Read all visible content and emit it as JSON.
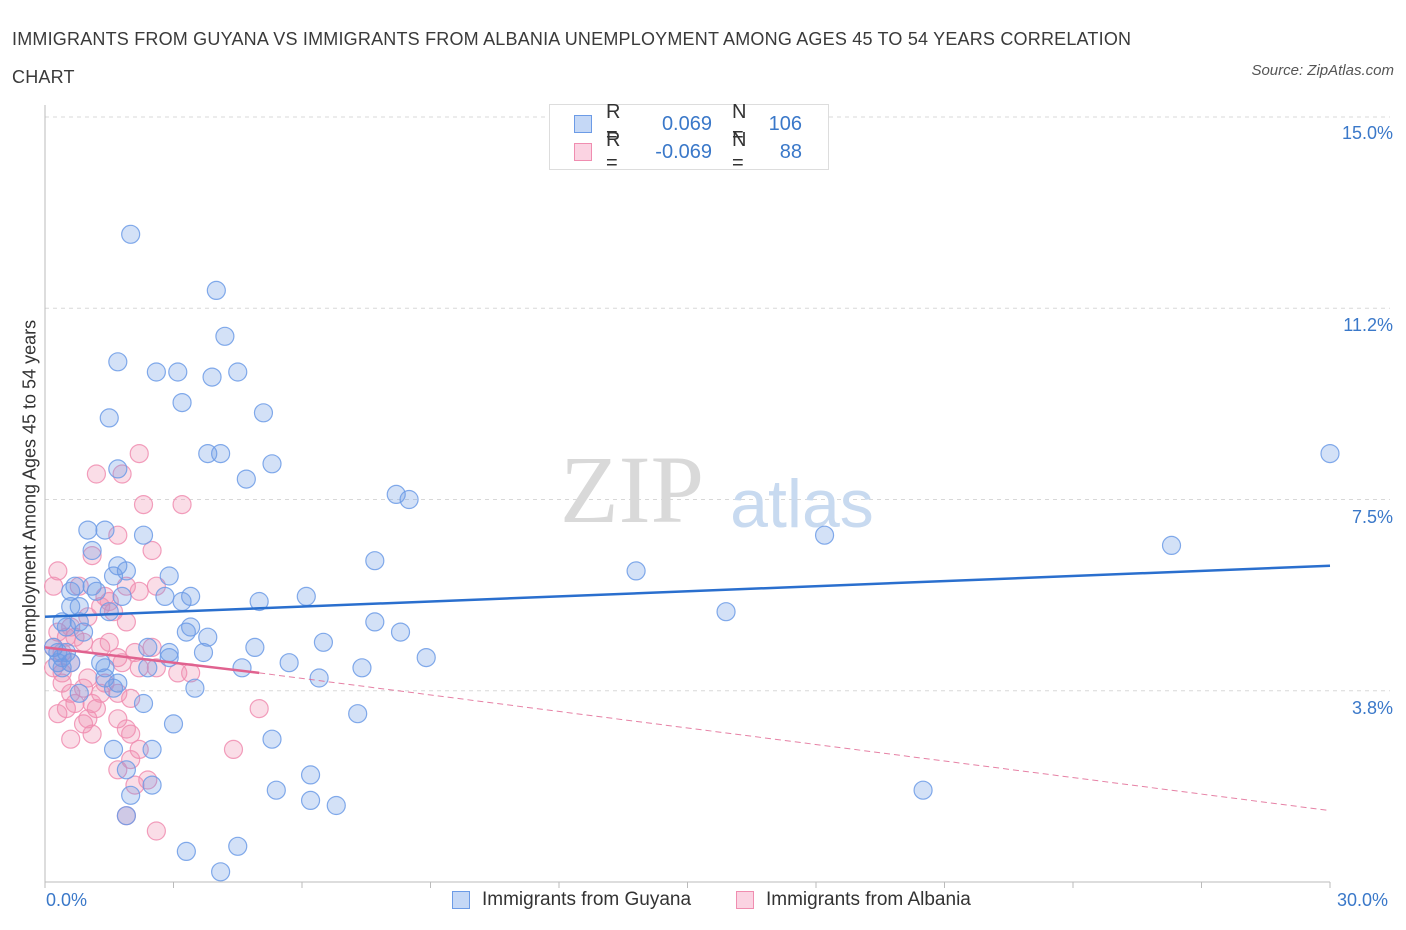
{
  "title": "IMMIGRANTS FROM GUYANA VS IMMIGRANTS FROM ALBANIA UNEMPLOYMENT AMONG AGES 45 TO 54 YEARS CORRELATION CHART",
  "source": "Source: ZipAtlas.com",
  "watermark": {
    "zip": "ZIP",
    "atlas": "atlas"
  },
  "colors": {
    "guyana": "#6c9be6",
    "albania": "#f08db0",
    "guyana_line": "#2a6fce",
    "albania_line": "#e0628f",
    "axis_text": "#3a78c9",
    "grid": "#d8d8d8"
  },
  "legend": {
    "series": [
      {
        "r_label": "R =",
        "r_value": "0.069",
        "n_label": "N =",
        "n_value": "106"
      },
      {
        "r_label": "R =",
        "r_value": "-0.069",
        "n_label": "N =",
        "n_value": "88"
      }
    ]
  },
  "bottom_legend": [
    "Immigrants from Guyana",
    "Immigrants from Albania"
  ],
  "chart_data": {
    "type": "scatter",
    "xlabel": "",
    "ylabel": "Unemployment Among Ages 45 to 54 years",
    "x_ticks": [
      "0.0%",
      "30.0%"
    ],
    "y_ticks": [
      "15.0%",
      "11.2%",
      "7.5%",
      "3.8%"
    ],
    "xlim": [
      0,
      30
    ],
    "ylim": [
      0,
      15
    ],
    "grid": true,
    "legend_position": "top-center",
    "series": [
      {
        "name": "Immigrants from Guyana",
        "trend": {
          "x": [
            0,
            30
          ],
          "y": [
            5.2,
            6.2
          ]
        },
        "points": [
          [
            2.0,
            12.7
          ],
          [
            4.0,
            11.6
          ],
          [
            4.2,
            10.7
          ],
          [
            1.7,
            10.2
          ],
          [
            2.6,
            10.0
          ],
          [
            3.1,
            10.0
          ],
          [
            3.9,
            9.9
          ],
          [
            4.5,
            10.0
          ],
          [
            3.2,
            9.4
          ],
          [
            1.5,
            9.1
          ],
          [
            5.1,
            9.2
          ],
          [
            3.8,
            8.4
          ],
          [
            4.1,
            8.4
          ],
          [
            1.7,
            8.1
          ],
          [
            5.3,
            8.2
          ],
          [
            4.7,
            7.9
          ],
          [
            8.2,
            7.6
          ],
          [
            8.5,
            7.5
          ],
          [
            30.0,
            8.4
          ],
          [
            18.2,
            6.8
          ],
          [
            26.3,
            6.6
          ],
          [
            1.0,
            6.9
          ],
          [
            1.4,
            6.9
          ],
          [
            2.3,
            6.8
          ],
          [
            1.1,
            6.5
          ],
          [
            1.7,
            6.2
          ],
          [
            1.9,
            6.1
          ],
          [
            1.6,
            6.0
          ],
          [
            2.9,
            6.0
          ],
          [
            7.7,
            6.3
          ],
          [
            13.8,
            6.1
          ],
          [
            0.7,
            5.8
          ],
          [
            1.1,
            5.8
          ],
          [
            1.2,
            5.7
          ],
          [
            0.6,
            5.7
          ],
          [
            1.8,
            5.6
          ],
          [
            2.8,
            5.6
          ],
          [
            3.4,
            5.6
          ],
          [
            3.2,
            5.5
          ],
          [
            0.6,
            5.4
          ],
          [
            0.8,
            5.4
          ],
          [
            1.5,
            5.3
          ],
          [
            5.0,
            5.5
          ],
          [
            6.1,
            5.6
          ],
          [
            15.9,
            5.3
          ],
          [
            0.4,
            5.1
          ],
          [
            0.5,
            5.0
          ],
          [
            0.8,
            5.1
          ],
          [
            0.9,
            4.9
          ],
          [
            3.4,
            5.0
          ],
          [
            3.3,
            4.9
          ],
          [
            7.7,
            5.1
          ],
          [
            8.3,
            4.9
          ],
          [
            3.8,
            4.8
          ],
          [
            6.5,
            4.7
          ],
          [
            0.2,
            4.6
          ],
          [
            0.3,
            4.5
          ],
          [
            0.4,
            4.4
          ],
          [
            0.5,
            4.5
          ],
          [
            0.3,
            4.3
          ],
          [
            0.4,
            4.2
          ],
          [
            0.6,
            4.3
          ],
          [
            2.4,
            4.6
          ],
          [
            2.9,
            4.5
          ],
          [
            2.9,
            4.4
          ],
          [
            3.7,
            4.5
          ],
          [
            4.9,
            4.6
          ],
          [
            5.7,
            4.3
          ],
          [
            7.4,
            4.2
          ],
          [
            8.9,
            4.4
          ],
          [
            1.3,
            4.3
          ],
          [
            1.4,
            4.2
          ],
          [
            1.4,
            4.0
          ],
          [
            2.4,
            4.2
          ],
          [
            4.6,
            4.2
          ],
          [
            6.4,
            4.0
          ],
          [
            1.7,
            3.9
          ],
          [
            1.6,
            3.8
          ],
          [
            3.5,
            3.8
          ],
          [
            0.8,
            3.7
          ],
          [
            2.3,
            3.5
          ],
          [
            7.3,
            3.3
          ],
          [
            3.0,
            3.1
          ],
          [
            5.3,
            2.8
          ],
          [
            1.6,
            2.6
          ],
          [
            2.5,
            2.6
          ],
          [
            1.9,
            2.2
          ],
          [
            6.2,
            2.1
          ],
          [
            2.5,
            1.9
          ],
          [
            5.4,
            1.8
          ],
          [
            2.0,
            1.7
          ],
          [
            6.2,
            1.6
          ],
          [
            6.8,
            1.5
          ],
          [
            20.5,
            1.8
          ],
          [
            1.9,
            1.3
          ],
          [
            3.3,
            0.6
          ],
          [
            4.5,
            0.7
          ],
          [
            4.1,
            0.2
          ]
        ]
      },
      {
        "name": "Immigrants from Albania",
        "trend": {
          "x": [
            0,
            5
          ],
          "y": [
            4.6,
            4.1
          ]
        },
        "trend_extended": {
          "x": [
            5,
            30
          ],
          "y": [
            4.1,
            1.4
          ]
        },
        "points": [
          [
            2.2,
            8.4
          ],
          [
            1.2,
            8.0
          ],
          [
            1.8,
            8.0
          ],
          [
            2.3,
            7.4
          ],
          [
            3.2,
            7.4
          ],
          [
            1.7,
            6.8
          ],
          [
            2.5,
            6.5
          ],
          [
            1.1,
            6.4
          ],
          [
            0.3,
            6.1
          ],
          [
            0.2,
            5.8
          ],
          [
            0.8,
            5.8
          ],
          [
            1.9,
            5.8
          ],
          [
            2.6,
            5.8
          ],
          [
            2.2,
            5.7
          ],
          [
            1.4,
            5.6
          ],
          [
            1.5,
            5.5
          ],
          [
            1.3,
            5.4
          ],
          [
            1.6,
            5.3
          ],
          [
            1.0,
            5.2
          ],
          [
            1.9,
            5.1
          ],
          [
            0.6,
            5.0
          ],
          [
            0.3,
            4.9
          ],
          [
            0.5,
            4.8
          ],
          [
            0.7,
            4.8
          ],
          [
            0.9,
            4.7
          ],
          [
            1.3,
            4.6
          ],
          [
            1.5,
            4.7
          ],
          [
            0.2,
            4.6
          ],
          [
            0.4,
            4.5
          ],
          [
            2.5,
            4.6
          ],
          [
            2.1,
            4.5
          ],
          [
            1.7,
            4.4
          ],
          [
            1.8,
            4.3
          ],
          [
            0.6,
            4.3
          ],
          [
            0.2,
            4.2
          ],
          [
            0.4,
            4.1
          ],
          [
            2.2,
            4.2
          ],
          [
            2.6,
            4.2
          ],
          [
            3.1,
            4.1
          ],
          [
            3.4,
            4.1
          ],
          [
            1.0,
            4.0
          ],
          [
            1.4,
            3.9
          ],
          [
            0.4,
            3.9
          ],
          [
            0.9,
            3.8
          ],
          [
            0.6,
            3.7
          ],
          [
            1.3,
            3.7
          ],
          [
            1.7,
            3.7
          ],
          [
            2.0,
            3.6
          ],
          [
            0.7,
            3.5
          ],
          [
            1.1,
            3.5
          ],
          [
            0.5,
            3.4
          ],
          [
            1.2,
            3.4
          ],
          [
            0.3,
            3.3
          ],
          [
            1.7,
            3.2
          ],
          [
            1.0,
            3.2
          ],
          [
            0.9,
            3.1
          ],
          [
            5.0,
            3.4
          ],
          [
            1.9,
            3.0
          ],
          [
            2.0,
            2.9
          ],
          [
            1.1,
            2.9
          ],
          [
            0.6,
            2.8
          ],
          [
            2.2,
            2.6
          ],
          [
            4.4,
            2.6
          ],
          [
            2.0,
            2.4
          ],
          [
            1.7,
            2.2
          ],
          [
            2.4,
            2.0
          ],
          [
            2.1,
            1.9
          ],
          [
            1.9,
            1.3
          ],
          [
            2.6,
            1.0
          ]
        ]
      }
    ]
  }
}
